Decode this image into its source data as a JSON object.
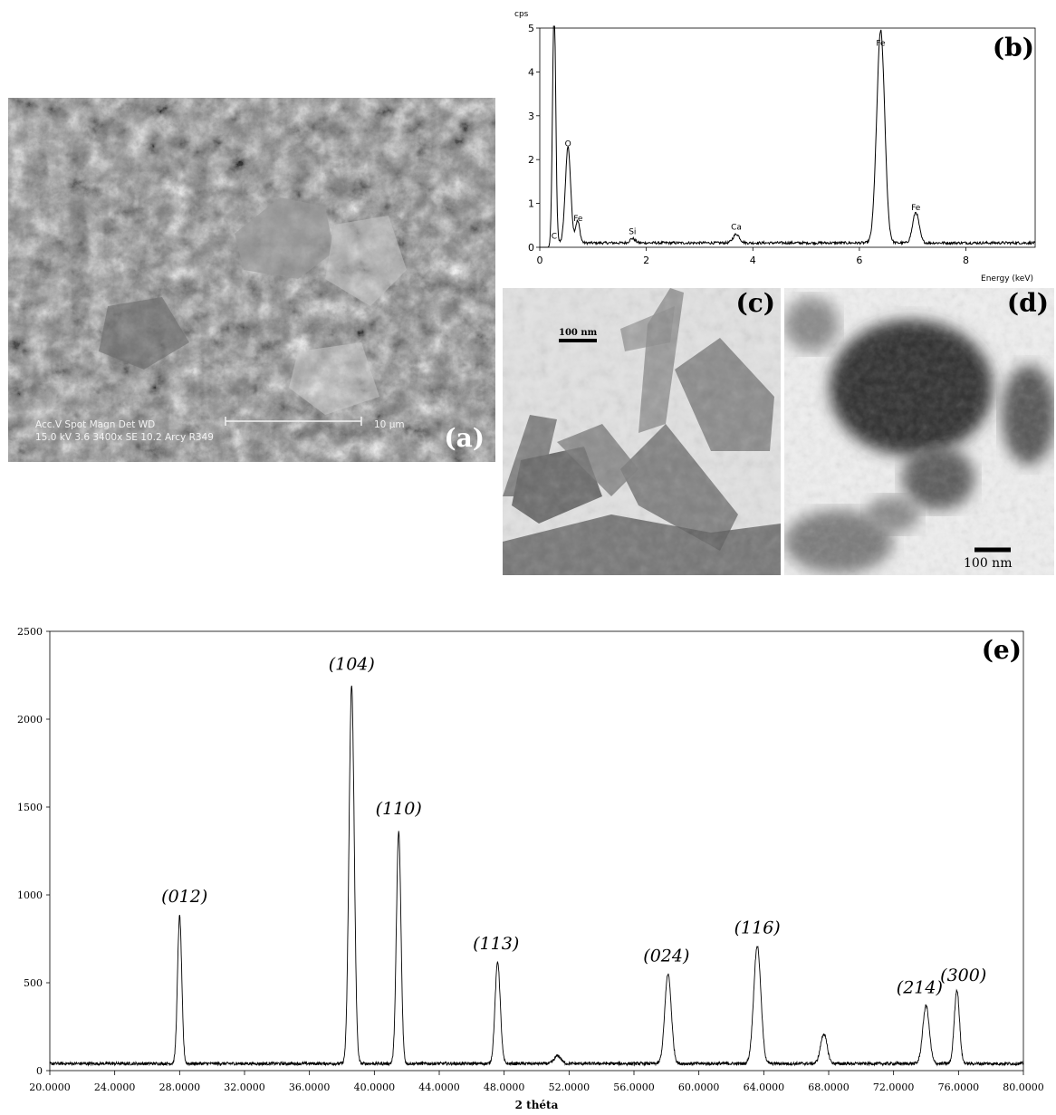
{
  "panels": {
    "a": {
      "label": "(a)",
      "sem_info": {
        "row1": "Acc.V   Spot Magn    Det  WD",
        "row2": "15.0 kV 3.6   3400x    SE   10.2  Arcy R349",
        "scale_bar": "10 µm"
      }
    },
    "b": {
      "label": "(b)"
    },
    "c": {
      "label": "(c)",
      "scale_bar": "100 nm"
    },
    "d": {
      "label": "(d)",
      "scale_bar": "100 nm"
    },
    "e": {
      "label": "(e)"
    }
  },
  "chart_data": [
    {
      "panel": "b",
      "type": "line",
      "ylabel": "cps",
      "xlabel": "Energy (keV)",
      "xlim": [
        0,
        9.3
      ],
      "ylim": [
        0,
        5
      ],
      "xticks": [
        0,
        2,
        4,
        6,
        8
      ],
      "yticks": [
        0,
        1,
        2,
        3,
        4,
        5
      ],
      "peaks": [
        {
          "label": "C",
          "x": 0.27,
          "height": 5.5,
          "width": 0.03
        },
        {
          "label": "O",
          "x": 0.53,
          "height": 2.2,
          "width": 0.05
        },
        {
          "label": "Fe",
          "x": 0.71,
          "height": 0.5,
          "width": 0.04
        },
        {
          "label": "Si",
          "x": 1.74,
          "height": 0.1,
          "width": 0.05
        },
        {
          "label": "Ca",
          "x": 3.69,
          "height": 0.2,
          "width": 0.06
        },
        {
          "label": "Fe",
          "x": 6.4,
          "height": 4.85,
          "width": 0.075
        },
        {
          "label": "Fe",
          "x": 7.06,
          "height": 0.7,
          "width": 0.06
        }
      ],
      "peak_labels": [
        {
          "text": "C",
          "x": 0.27,
          "y": 0.2
        },
        {
          "text": "O",
          "x": 0.53,
          "y": 2.3
        },
        {
          "text": "Fe",
          "x": 0.72,
          "y": 0.6
        },
        {
          "text": "Si",
          "x": 1.74,
          "y": 0.3
        },
        {
          "text": "Ca",
          "x": 3.69,
          "y": 0.4
        },
        {
          "text": "Fe",
          "x": 6.4,
          "y": 4.6
        },
        {
          "text": "Fe",
          "x": 7.06,
          "y": 0.85
        }
      ]
    },
    {
      "panel": "e",
      "type": "line",
      "xlabel": "2 théta",
      "ylabel": "",
      "xlim": [
        20,
        80
      ],
      "ylim": [
        0,
        2500
      ],
      "xtick_labels": [
        "20.0000",
        "24.0000",
        "28.0000",
        "32.0000",
        "36.0000",
        "40.0000",
        "44.0000",
        "48.0000",
        "52.0000",
        "56.0000",
        "60.0000",
        "64.0000",
        "68.0000",
        "72.0000",
        "76.0000",
        "80.0000"
      ],
      "xticks": [
        20,
        24,
        28,
        32,
        36,
        40,
        44,
        48,
        52,
        56,
        60,
        64,
        68,
        72,
        76,
        80
      ],
      "yticks": [
        0,
        500,
        1000,
        1500,
        2000,
        2500
      ],
      "baseline": 40,
      "peaks": [
        {
          "hkl": "(012)",
          "x": 28.0,
          "height": 840,
          "width": 0.13
        },
        {
          "hkl": "(104)",
          "x": 38.6,
          "height": 2150,
          "width": 0.16
        },
        {
          "hkl": "(110)",
          "x": 41.5,
          "height": 1320,
          "width": 0.14
        },
        {
          "hkl": "(113)",
          "x": 47.6,
          "height": 580,
          "width": 0.16
        },
        {
          "hkl": "",
          "x": 51.3,
          "height": 45,
          "width": 0.2
        },
        {
          "hkl": "(024)",
          "x": 58.1,
          "height": 510,
          "width": 0.2
        },
        {
          "hkl": "(116)",
          "x": 63.6,
          "height": 670,
          "width": 0.22
        },
        {
          "hkl": "",
          "x": 67.7,
          "height": 170,
          "width": 0.2
        },
        {
          "hkl": "(214)",
          "x": 74.0,
          "height": 330,
          "width": 0.2
        },
        {
          "hkl": "(300)",
          "x": 75.9,
          "height": 420,
          "width": 0.16
        }
      ],
      "peak_labels": [
        {
          "text": "(012)",
          "x": 28.3,
          "y": 960
        },
        {
          "text": "(104)",
          "x": 38.6,
          "y": 2280
        },
        {
          "text": "(110)",
          "x": 41.5,
          "y": 1460
        },
        {
          "text": "(113)",
          "x": 47.5,
          "y": 690
        },
        {
          "text": "(024)",
          "x": 58.0,
          "y": 620
        },
        {
          "text": "(116)",
          "x": 63.6,
          "y": 780
        },
        {
          "text": "(214)",
          "x": 73.6,
          "y": 440
        },
        {
          "text": "(300)",
          "x": 76.3,
          "y": 510
        }
      ]
    }
  ]
}
